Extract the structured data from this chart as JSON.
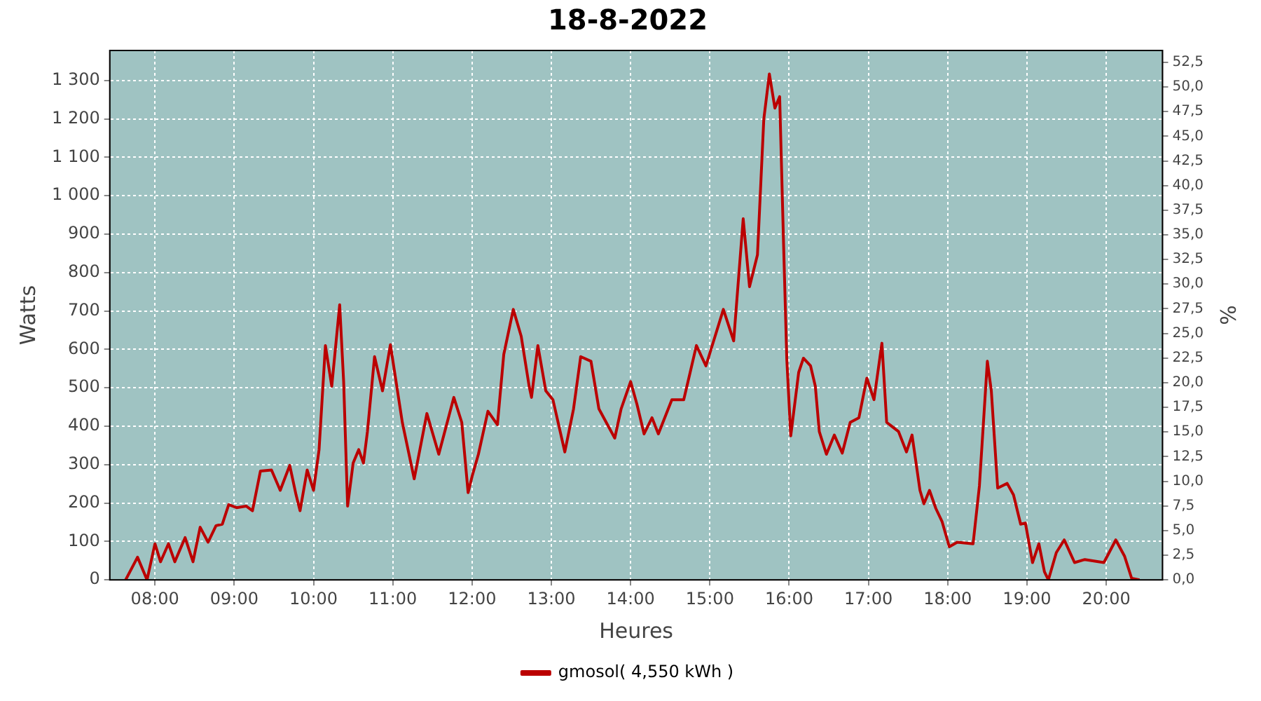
{
  "chart_data": {
    "type": "line",
    "title": "18-8-2022",
    "xlabel": "Heures",
    "ylabel": "Watts",
    "y2label": "%",
    "x": [
      7.63,
      7.78,
      7.9,
      8.0,
      8.07,
      8.17,
      8.25,
      8.38,
      8.48,
      8.57,
      8.67,
      8.77,
      8.85,
      8.93,
      9.03,
      9.15,
      9.23,
      9.33,
      9.47,
      9.58,
      9.7,
      9.78,
      9.83,
      9.92,
      10.0,
      10.07,
      10.15,
      10.23,
      10.33,
      10.38,
      10.43,
      10.5,
      10.57,
      10.63,
      10.68,
      10.77,
      10.87,
      10.97,
      11.12,
      11.27,
      11.43,
      11.58,
      11.77,
      11.87,
      11.95,
      12.0,
      12.08,
      12.2,
      12.32,
      12.4,
      12.52,
      12.62,
      12.72,
      12.75,
      12.83,
      12.93,
      13.02,
      13.17,
      13.28,
      13.37,
      13.5,
      13.6,
      13.8,
      13.88,
      14.0,
      14.08,
      14.17,
      14.27,
      14.35,
      14.52,
      14.67,
      14.75,
      14.83,
      14.95,
      15.17,
      15.3,
      15.42,
      15.5,
      15.6,
      15.68,
      15.75,
      15.82,
      15.88,
      15.93,
      15.97,
      16.02,
      16.12,
      16.18,
      16.27,
      16.33,
      16.38,
      16.47,
      16.57,
      16.67,
      16.77,
      16.88,
      16.98,
      17.07,
      17.17,
      17.23,
      17.38,
      17.48,
      17.55,
      17.65,
      17.7,
      17.77,
      17.85,
      17.93,
      18.02,
      18.12,
      18.32,
      18.4,
      18.5,
      18.55,
      18.63,
      18.75,
      18.83,
      18.92,
      18.98,
      19.07,
      19.15,
      19.22,
      19.27,
      19.37,
      19.47,
      19.6,
      19.73,
      19.97,
      20.12,
      20.23,
      20.32,
      20.42
    ],
    "series": [
      {
        "name": "gmosol( 4,550 kWh )",
        "color": "#bb0000",
        "values": [
          0,
          59,
          0,
          94,
          47,
          94,
          47,
          110,
          47,
          137,
          98,
          141,
          145,
          196,
          188,
          192,
          180,
          283,
          286,
          233,
          298,
          221,
          180,
          286,
          233,
          339,
          610,
          504,
          716,
          516,
          192,
          304,
          339,
          304,
          386,
          581,
          492,
          612,
          410,
          263,
          433,
          327,
          475,
          410,
          227,
          269,
          327,
          439,
          404,
          587,
          704,
          634,
          504,
          475,
          610,
          492,
          469,
          333,
          445,
          581,
          569,
          445,
          369,
          445,
          516,
          457,
          380,
          422,
          380,
          469,
          469,
          539,
          610,
          557,
          704,
          622,
          940,
          763,
          846,
          1199,
          1317,
          1228,
          1258,
          870,
          575,
          375,
          540,
          577,
          557,
          504,
          386,
          327,
          377,
          330,
          410,
          422,
          525,
          469,
          616,
          410,
          386,
          333,
          377,
          233,
          198,
          233,
          186,
          151,
          86,
          98,
          94,
          245,
          569,
          492,
          239,
          251,
          221,
          145,
          148,
          45,
          94,
          21,
          0,
          71,
          104,
          45,
          53,
          45,
          104,
          62,
          4,
          0
        ]
      }
    ],
    "xlim": [
      7.43,
      20.71
    ],
    "xticks": [
      {
        "value": 8,
        "label": "08:00"
      },
      {
        "value": 9,
        "label": "09:00"
      },
      {
        "value": 10,
        "label": "10:00"
      },
      {
        "value": 11,
        "label": "11:00"
      },
      {
        "value": 12,
        "label": "12:00"
      },
      {
        "value": 13,
        "label": "13:00"
      },
      {
        "value": 14,
        "label": "14:00"
      },
      {
        "value": 15,
        "label": "15:00"
      },
      {
        "value": 16,
        "label": "16:00"
      },
      {
        "value": 17,
        "label": "17:00"
      },
      {
        "value": 18,
        "label": "18:00"
      },
      {
        "value": 19,
        "label": "19:00"
      },
      {
        "value": 20,
        "label": "20:00"
      }
    ],
    "ylim": [
      0,
      1378
    ],
    "yticks": [
      0,
      100,
      200,
      300,
      400,
      500,
      600,
      700,
      800,
      900,
      {
        "value": 1000,
        "label": "1 000"
      },
      {
        "value": 1100,
        "label": "1 100"
      },
      {
        "value": 1200,
        "label": "1 200"
      },
      {
        "value": 1300,
        "label": "1 300"
      }
    ],
    "y2lim": [
      0,
      53.7
    ],
    "y2ticks": [
      {
        "value": 0,
        "label": "0,0"
      },
      {
        "value": 2.5,
        "label": "2,5"
      },
      {
        "value": 5,
        "label": "5,0"
      },
      {
        "value": 7.5,
        "label": "7,5"
      },
      {
        "value": 10,
        "label": "10,0"
      },
      {
        "value": 12.5,
        "label": "12,5"
      },
      {
        "value": 15,
        "label": "15,0"
      },
      {
        "value": 17.5,
        "label": "17,5"
      },
      {
        "value": 20,
        "label": "20,0"
      },
      {
        "value": 22.5,
        "label": "22,5"
      },
      {
        "value": 25,
        "label": "25,0"
      },
      {
        "value": 27.5,
        "label": "27,5"
      },
      {
        "value": 30,
        "label": "30,0"
      },
      {
        "value": 32.5,
        "label": "32,5"
      },
      {
        "value": 35,
        "label": "35,0"
      },
      {
        "value": 37.5,
        "label": "37,5"
      },
      {
        "value": 40,
        "label": "40,0"
      },
      {
        "value": 42.5,
        "label": "42,5"
      },
      {
        "value": 45,
        "label": "45,0"
      },
      {
        "value": 47.5,
        "label": "47,5"
      },
      {
        "value": 50,
        "label": "50,0"
      },
      {
        "value": 52.5,
        "label": "52,5"
      }
    ],
    "grid": true,
    "legend": "bottom",
    "marker": "none",
    "line_style": "solid"
  }
}
